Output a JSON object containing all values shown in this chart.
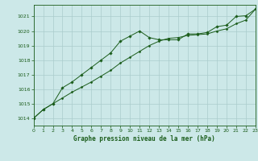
{
  "title": "Graphe pression niveau de la mer (hPa)",
  "background_color": "#cce8e8",
  "grid_color": "#aacccc",
  "line_color": "#1a5c1a",
  "xlim": [
    0,
    23
  ],
  "ylim": [
    1013.5,
    1021.8
  ],
  "xticks": [
    0,
    1,
    2,
    3,
    4,
    5,
    6,
    7,
    8,
    9,
    10,
    11,
    12,
    13,
    14,
    15,
    16,
    17,
    18,
    19,
    20,
    21,
    22,
    23
  ],
  "yticks": [
    1014,
    1015,
    1016,
    1017,
    1018,
    1019,
    1020,
    1021
  ],
  "series1_x": [
    0,
    1,
    2,
    3,
    4,
    5,
    6,
    7,
    8,
    9,
    10,
    11,
    12,
    13,
    14,
    15,
    16,
    17,
    18,
    19,
    20,
    21,
    22,
    23
  ],
  "series1_y": [
    1014.0,
    1014.6,
    1015.0,
    1016.1,
    1016.5,
    1017.0,
    1017.5,
    1018.0,
    1018.5,
    1019.3,
    1019.65,
    1020.0,
    1019.55,
    1019.4,
    1019.4,
    1019.4,
    1019.8,
    1019.8,
    1019.9,
    1020.3,
    1020.4,
    1021.0,
    1021.05,
    1021.5
  ],
  "series2_x": [
    0,
    1,
    2,
    3,
    4,
    5,
    6,
    7,
    8,
    9,
    10,
    11,
    12,
    13,
    14,
    15,
    16,
    17,
    18,
    19,
    20,
    21,
    22,
    23
  ],
  "series2_y": [
    1014.0,
    1014.6,
    1015.0,
    1015.4,
    1015.8,
    1016.15,
    1016.5,
    1016.9,
    1017.3,
    1017.8,
    1018.2,
    1018.6,
    1019.0,
    1019.3,
    1019.5,
    1019.55,
    1019.7,
    1019.75,
    1019.8,
    1020.0,
    1020.15,
    1020.5,
    1020.75,
    1021.5
  ],
  "title_fontsize": 5.5,
  "tick_fontsize": 4.5
}
